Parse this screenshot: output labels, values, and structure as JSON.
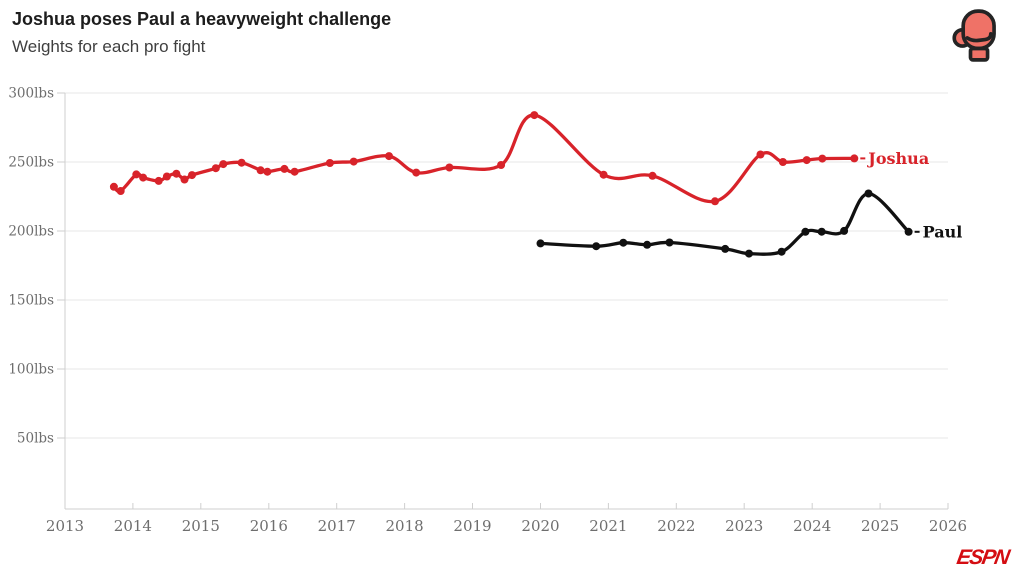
{
  "header": {
    "title": "Joshua poses Paul a heavyweight challenge",
    "subtitle": "Weights for each pro fight"
  },
  "branding": {
    "espn_logo_text": "ESPN",
    "espn_red": "#d40d12",
    "glove_fill": "#ef7267",
    "glove_outline": "#242424"
  },
  "chart_data": {
    "type": "line",
    "title": "Joshua poses Paul a heavyweight challenge",
    "subtitle": "Weights for each pro fight",
    "unit": "lbs",
    "xlim": [
      2013,
      2026
    ],
    "ylim": [
      0,
      300
    ],
    "grid": "horizontal",
    "legend_position": "line-end-labels",
    "x_ticks": [
      2013,
      2014,
      2015,
      2016,
      2017,
      2018,
      2019,
      2020,
      2021,
      2022,
      2023,
      2024,
      2025,
      2026
    ],
    "y_ticks": [
      {
        "value": 50,
        "label": "50lbs"
      },
      {
        "value": 100,
        "label": "100lbs"
      },
      {
        "value": 150,
        "label": "150lbs"
      },
      {
        "value": 200,
        "label": "200lbs"
      },
      {
        "value": 250,
        "label": "250lbs"
      },
      {
        "value": 300,
        "label": "300lbs"
      }
    ],
    "colors": {
      "grid": "#e7e7e7",
      "axis": "#cfcfcf",
      "tick_text": "#6e6e6e"
    },
    "series": [
      {
        "name": "Joshua",
        "color": "#d8232a",
        "points": [
          [
            2013.72,
            232
          ],
          [
            2013.82,
            229
          ],
          [
            2014.05,
            241
          ],
          [
            2014.15,
            238.7
          ],
          [
            2014.38,
            236.3
          ],
          [
            2014.5,
            239.5
          ],
          [
            2014.64,
            241.5
          ],
          [
            2014.76,
            237.3
          ],
          [
            2014.87,
            240.5
          ],
          [
            2015.22,
            245.5
          ],
          [
            2015.33,
            248.5
          ],
          [
            2015.6,
            249.5
          ],
          [
            2015.88,
            244.0
          ],
          [
            2015.98,
            243.0
          ],
          [
            2016.23,
            245.0
          ],
          [
            2016.38,
            243.0
          ],
          [
            2016.9,
            249.3
          ],
          [
            2017.25,
            250.3
          ],
          [
            2017.77,
            254.3
          ],
          [
            2018.17,
            242.3
          ],
          [
            2018.66,
            246.0
          ],
          [
            2019.42,
            247.8
          ],
          [
            2019.91,
            284.0
          ],
          [
            2020.93,
            240.8
          ],
          [
            2021.65,
            240.0
          ],
          [
            2022.57,
            221.5
          ],
          [
            2023.24,
            255.4
          ],
          [
            2023.57,
            250.0
          ],
          [
            2023.92,
            251.4
          ],
          [
            2024.15,
            252.5
          ],
          [
            2024.62,
            252.6
          ]
        ]
      },
      {
        "name": "Paul",
        "color": "#111111",
        "points": [
          [
            2020.0,
            191.0
          ],
          [
            2020.82,
            189.0
          ],
          [
            2021.22,
            191.5
          ],
          [
            2021.57,
            190.0
          ],
          [
            2021.9,
            191.7
          ],
          [
            2022.72,
            187.0
          ],
          [
            2023.07,
            183.6
          ],
          [
            2023.55,
            185.0
          ],
          [
            2023.9,
            199.4
          ],
          [
            2024.14,
            199.5
          ],
          [
            2024.47,
            200.1
          ],
          [
            2024.83,
            227.2
          ],
          [
            2025.42,
            199.4
          ]
        ]
      }
    ]
  }
}
